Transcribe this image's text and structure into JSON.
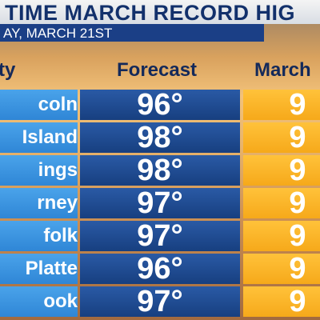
{
  "header": {
    "title": "TIME MARCH RECORD HIG",
    "subtitle": "AY, MARCH 21ST"
  },
  "table": {
    "columns": [
      "ty",
      "Forecast",
      "March"
    ],
    "rows": [
      [
        "coln",
        "96°",
        "9"
      ],
      [
        "Island",
        "98°",
        "9"
      ],
      [
        "ings",
        "98°",
        "9"
      ],
      [
        "rney",
        "97°",
        "9"
      ],
      [
        "folk",
        "97°",
        "9"
      ],
      [
        "Platte",
        "96°",
        "9"
      ],
      [
        "ook",
        "97°",
        "9"
      ]
    ]
  }
}
